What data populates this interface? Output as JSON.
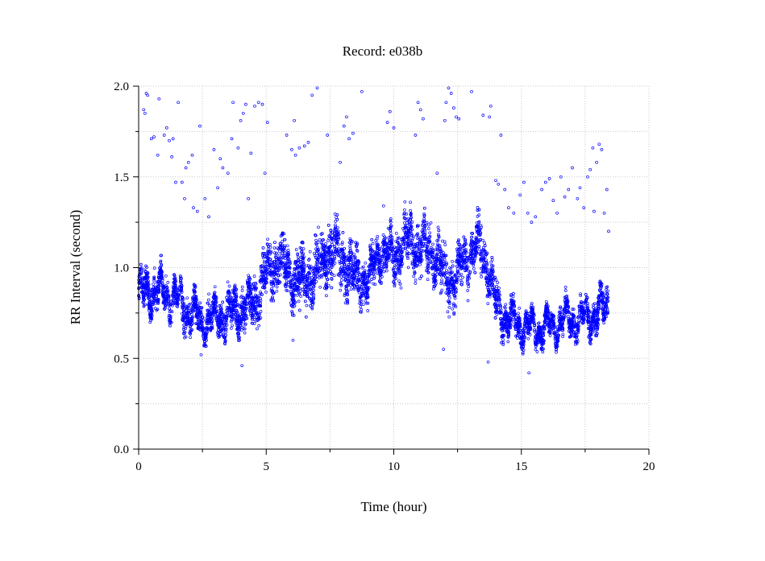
{
  "chart_data": {
    "type": "scatter",
    "title": "Record:  e038b",
    "xlabel": "Time (hour)",
    "ylabel": "RR Interval (second)",
    "xlim": [
      0,
      20
    ],
    "ylim": [
      0,
      2.0
    ],
    "x_ticks": [
      0,
      5,
      10,
      15,
      20
    ],
    "x_minor_ticks": [
      2.5,
      7.5,
      12.5,
      17.5
    ],
    "y_ticks": [
      0.0,
      0.5,
      1.0,
      1.5,
      2.0
    ],
    "y_tick_labels": [
      "0.0",
      "0.5",
      "1.0",
      "1.5",
      "2.0"
    ],
    "y_minor_ticks": [
      0.25,
      0.75,
      1.25,
      1.75
    ],
    "grid": true,
    "marker": "open-circle",
    "color": "#0000ff",
    "data_extent_x": [
      0,
      18.4
    ],
    "trend": {
      "x": [
        0,
        0.5,
        1.0,
        1.5,
        2.0,
        2.5,
        3.0,
        3.5,
        4.0,
        4.5,
        5.0,
        5.5,
        6.0,
        6.5,
        7.0,
        7.5,
        8.0,
        8.5,
        9.0,
        9.5,
        10.0,
        10.5,
        11.0,
        11.5,
        12.0,
        12.5,
        13.0,
        13.5,
        14.0,
        14.5,
        15.0,
        15.5,
        16.0,
        16.5,
        17.0,
        17.5,
        18.0,
        18.4
      ],
      "center": [
        0.87,
        0.87,
        0.86,
        0.82,
        0.75,
        0.7,
        0.72,
        0.74,
        0.78,
        0.8,
        0.95,
        1.05,
        0.95,
        0.92,
        1.0,
        1.1,
        1.05,
        0.95,
        0.92,
        1.1,
        1.05,
        1.15,
        1.12,
        1.1,
        0.95,
        0.95,
        1.1,
        1.1,
        0.8,
        0.72,
        0.68,
        0.66,
        0.67,
        0.7,
        0.72,
        0.72,
        0.75,
        0.8
      ],
      "spread": [
        0.12,
        0.13,
        0.12,
        0.12,
        0.13,
        0.12,
        0.12,
        0.15,
        0.16,
        0.17,
        0.18,
        0.19,
        0.18,
        0.18,
        0.2,
        0.2,
        0.2,
        0.18,
        0.15,
        0.15,
        0.17,
        0.18,
        0.18,
        0.19,
        0.18,
        0.17,
        0.16,
        0.16,
        0.15,
        0.12,
        0.1,
        0.09,
        0.09,
        0.1,
        0.1,
        0.11,
        0.12,
        0.14
      ]
    },
    "outliers": [
      [
        0.3,
        1.96
      ],
      [
        0.35,
        1.95
      ],
      [
        0.2,
        1.87
      ],
      [
        0.25,
        1.85
      ],
      [
        0.5,
        1.71
      ],
      [
        0.6,
        1.72
      ],
      [
        0.75,
        1.62
      ],
      [
        0.8,
        1.93
      ],
      [
        1.0,
        1.73
      ],
      [
        1.1,
        1.77
      ],
      [
        1.2,
        1.7
      ],
      [
        1.35,
        1.71
      ],
      [
        1.3,
        1.61
      ],
      [
        1.45,
        1.47
      ],
      [
        1.55,
        1.91
      ],
      [
        1.7,
        1.47
      ],
      [
        1.8,
        1.38
      ],
      [
        1.85,
        1.55
      ],
      [
        1.95,
        1.58
      ],
      [
        2.1,
        1.62
      ],
      [
        2.15,
        1.33
      ],
      [
        2.3,
        1.31
      ],
      [
        2.4,
        1.78
      ],
      [
        2.6,
        1.38
      ],
      [
        2.75,
        1.28
      ],
      [
        2.95,
        1.65
      ],
      [
        3.1,
        1.44
      ],
      [
        3.2,
        1.6
      ],
      [
        3.3,
        1.55
      ],
      [
        3.5,
        1.52
      ],
      [
        3.65,
        1.71
      ],
      [
        3.7,
        1.91
      ],
      [
        3.9,
        1.66
      ],
      [
        4.0,
        1.81
      ],
      [
        4.1,
        1.85
      ],
      [
        4.2,
        1.9
      ],
      [
        4.3,
        1.38
      ],
      [
        4.4,
        1.63
      ],
      [
        4.55,
        1.89
      ],
      [
        4.7,
        1.91
      ],
      [
        4.85,
        1.9
      ],
      [
        4.95,
        1.52
      ],
      [
        5.05,
        1.8
      ],
      [
        5.8,
        1.73
      ],
      [
        6.0,
        1.65
      ],
      [
        6.1,
        1.81
      ],
      [
        6.15,
        1.62
      ],
      [
        6.3,
        1.66
      ],
      [
        6.5,
        1.67
      ],
      [
        6.65,
        1.69
      ],
      [
        6.8,
        1.95
      ],
      [
        7.0,
        1.99
      ],
      [
        7.4,
        1.73
      ],
      [
        7.9,
        1.58
      ],
      [
        8.05,
        1.78
      ],
      [
        8.15,
        1.83
      ],
      [
        8.25,
        1.71
      ],
      [
        8.4,
        1.74
      ],
      [
        8.75,
        1.97
      ],
      [
        9.75,
        1.8
      ],
      [
        9.85,
        1.86
      ],
      [
        10.0,
        1.77
      ],
      [
        10.85,
        1.73
      ],
      [
        10.95,
        1.91
      ],
      [
        11.05,
        1.87
      ],
      [
        11.15,
        1.82
      ],
      [
        11.7,
        1.52
      ],
      [
        12.0,
        1.81
      ],
      [
        12.05,
        1.91
      ],
      [
        12.15,
        1.99
      ],
      [
        12.25,
        1.96
      ],
      [
        12.35,
        1.88
      ],
      [
        12.45,
        1.83
      ],
      [
        12.55,
        1.82
      ],
      [
        13.05,
        1.97
      ],
      [
        13.5,
        1.84
      ],
      [
        13.75,
        1.83
      ],
      [
        13.8,
        1.89
      ],
      [
        14.0,
        1.48
      ],
      [
        14.1,
        1.46
      ],
      [
        14.2,
        1.73
      ],
      [
        14.35,
        1.43
      ],
      [
        14.5,
        1.33
      ],
      [
        14.7,
        1.3
      ],
      [
        14.95,
        1.4
      ],
      [
        15.1,
        1.47
      ],
      [
        15.25,
        1.3
      ],
      [
        15.4,
        1.25
      ],
      [
        15.55,
        1.28
      ],
      [
        15.8,
        1.43
      ],
      [
        15.95,
        1.47
      ],
      [
        16.1,
        1.49
      ],
      [
        16.25,
        1.37
      ],
      [
        16.4,
        1.3
      ],
      [
        16.55,
        1.5
      ],
      [
        16.7,
        1.39
      ],
      [
        16.85,
        1.43
      ],
      [
        17.0,
        1.55
      ],
      [
        17.2,
        1.38
      ],
      [
        17.3,
        1.44
      ],
      [
        17.45,
        1.33
      ],
      [
        17.6,
        1.5
      ],
      [
        17.7,
        1.54
      ],
      [
        17.8,
        1.66
      ],
      [
        17.85,
        1.31
      ],
      [
        17.95,
        1.58
      ],
      [
        18.05,
        1.68
      ],
      [
        18.15,
        1.65
      ],
      [
        18.25,
        1.3
      ],
      [
        18.35,
        1.43
      ],
      [
        18.42,
        1.2
      ],
      [
        4.05,
        0.46
      ],
      [
        2.45,
        0.52
      ],
      [
        6.05,
        0.6
      ],
      [
        13.7,
        0.48
      ],
      [
        15.3,
        0.42
      ],
      [
        9.6,
        1.34
      ],
      [
        11.95,
        0.55
      ]
    ]
  }
}
